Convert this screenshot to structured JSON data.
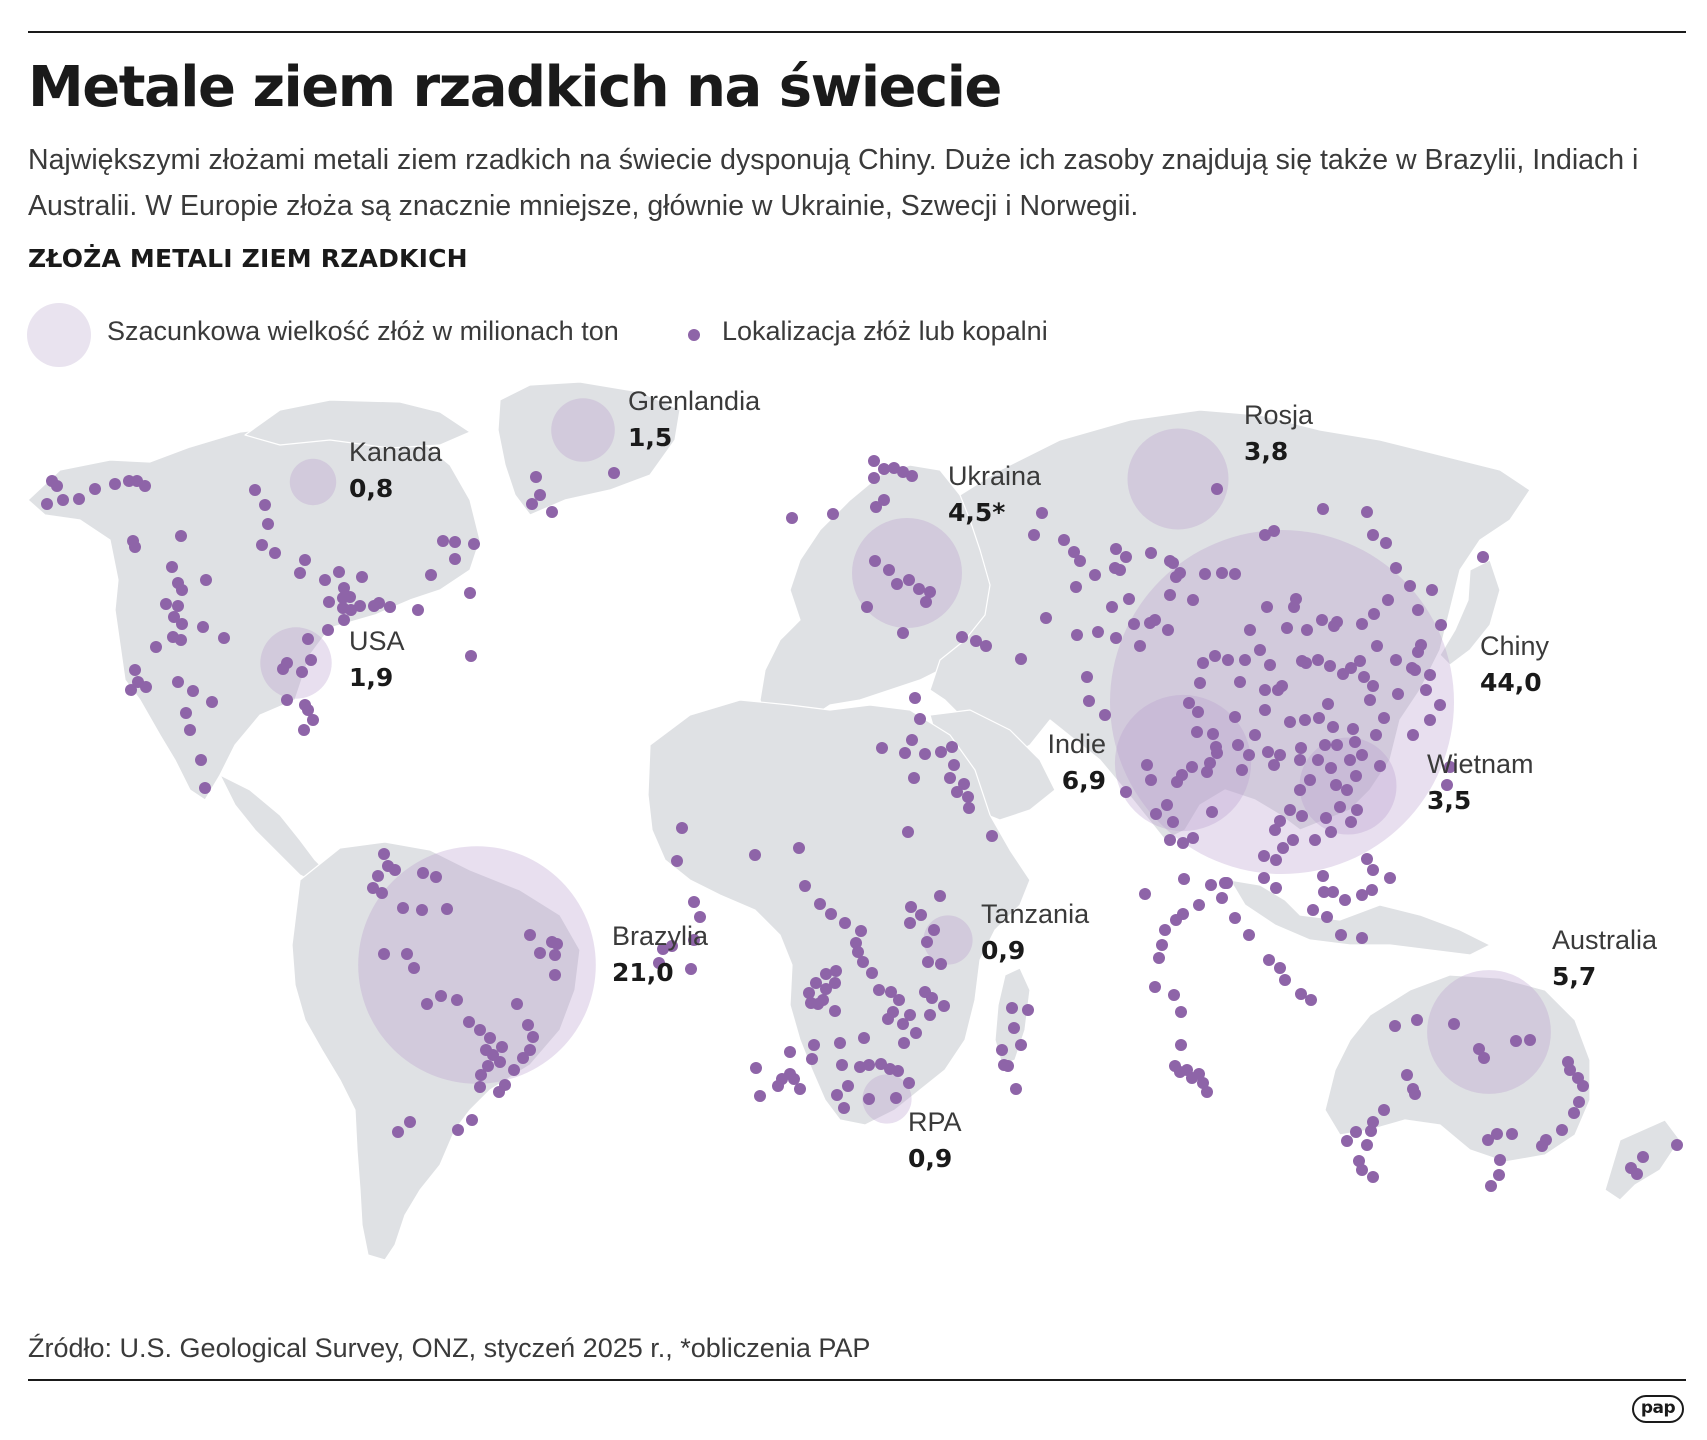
{
  "title": "Metale ziem rzadkich na świecie",
  "subtitle": "Największymi złożami metali ziem rzadkich na świecie dysponują Chiny. Duże ich zasoby znajdują się także w Brazylii, Indiach i Australii. W Europie złoża są znacznie mniejsze, głównie w Ukrainie, Szwecji i Norwegii.",
  "section_title": "ZŁOŻA METALI ZIEM RZADKICH",
  "legend": {
    "bubble_label": "Szacunkowa wielkość złóż w milionach ton",
    "dot_label": "Lokalizacja złóż lub kopalni"
  },
  "colors": {
    "land": "#dfe1e4",
    "border": "#ffffff",
    "bubble": "#b79ccc",
    "dot": "#8e64a8",
    "legend_bubble": "#e9e3ef"
  },
  "deposits": [
    {
      "name": "Chiny",
      "value": "44,0",
      "amount": 44.0
    },
    {
      "name": "Brazylia",
      "value": "21,0",
      "amount": 21.0
    },
    {
      "name": "Indie",
      "value": "6,9",
      "amount": 6.9
    },
    {
      "name": "Australia",
      "value": "5,7",
      "amount": 5.7
    },
    {
      "name": "Ukraina",
      "value": "4,5*",
      "amount": 4.5
    },
    {
      "name": "Rosja",
      "value": "3,8",
      "amount": 3.8
    },
    {
      "name": "Wietnam",
      "value": "3,5",
      "amount": 3.5
    },
    {
      "name": "USA",
      "value": "1,9",
      "amount": 1.9
    },
    {
      "name": "Grenlandia",
      "value": "1,5",
      "amount": 1.5
    },
    {
      "name": "Tanzania",
      "value": "0,9",
      "amount": 0.9
    },
    {
      "name": "RPA",
      "value": "0,9",
      "amount": 0.9
    },
    {
      "name": "Kanada",
      "value": "0,8",
      "amount": 0.8
    }
  ],
  "source": "Źródło: U.S. Geological Survey, ONZ, styczeń 2025 r., *obliczenia PAP",
  "logo": "pap"
}
